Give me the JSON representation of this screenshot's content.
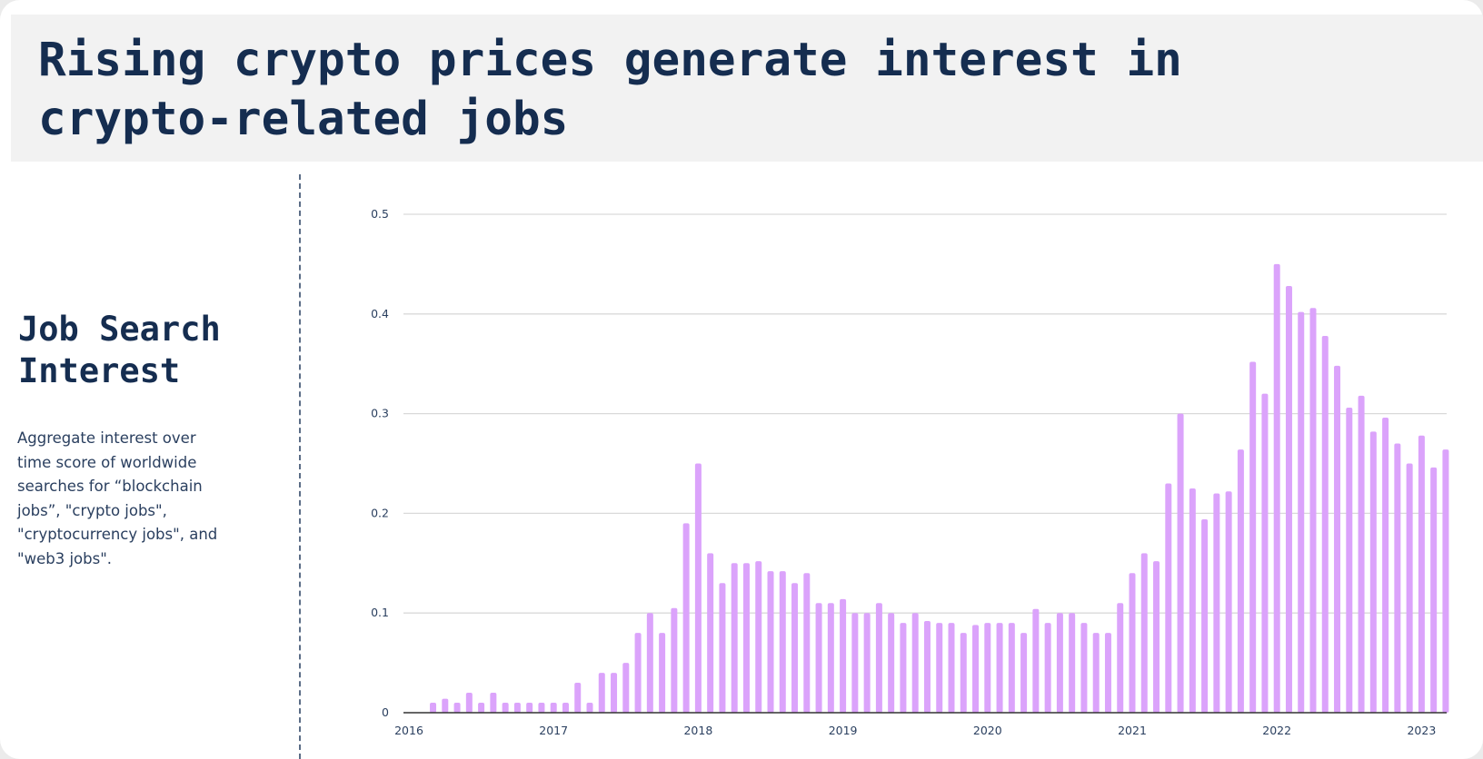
{
  "header": {
    "title": "Rising crypto prices generate interest in crypto-related jobs"
  },
  "sidebar": {
    "title": "Job Search Interest",
    "description": "Aggregate interest over time score of worldwide searches for “blockchain jobs”, \"crypto jobs\", \"cryptocurrency jobs\", and \"web3 jobs\"."
  },
  "colors": {
    "bar": "#dba3fb",
    "grid": "#d9d9d9",
    "axis": "#333333",
    "title": "#152d50"
  },
  "chart_data": {
    "type": "bar",
    "title": "",
    "xlabel": "",
    "ylabel": "",
    "ylim": [
      0,
      0.5
    ],
    "y_ticks": [
      "0",
      "0.1",
      "0.2",
      "0.3",
      "0.4",
      "0.5"
    ],
    "x_tick_labels": [
      "2016",
      "2017",
      "2018",
      "2019",
      "2020",
      "2021",
      "2022",
      "2023"
    ],
    "grid": "horizontal",
    "x_start": "2016-01",
    "x_end": "2023-04",
    "categories": [
      "2016-03",
      "2016-04",
      "2016-05",
      "2016-06",
      "2016-07",
      "2016-08",
      "2016-09",
      "2016-10",
      "2016-11",
      "2016-12",
      "2017-01",
      "2017-02",
      "2017-03",
      "2017-04",
      "2017-05",
      "2017-06",
      "2017-07",
      "2017-08",
      "2017-09",
      "2017-10",
      "2017-11",
      "2017-12",
      "2018-01",
      "2018-02",
      "2018-03",
      "2018-04",
      "2018-05",
      "2018-06",
      "2018-07",
      "2018-08",
      "2018-09",
      "2018-10",
      "2018-11",
      "2018-12",
      "2019-01",
      "2019-02",
      "2019-03",
      "2019-04",
      "2019-05",
      "2019-06",
      "2019-07",
      "2019-08",
      "2019-09",
      "2019-10",
      "2019-11",
      "2019-12",
      "2020-01",
      "2020-02",
      "2020-03",
      "2020-04",
      "2020-05",
      "2020-06",
      "2020-07",
      "2020-08",
      "2020-09",
      "2020-10",
      "2020-11",
      "2020-12",
      "2021-01",
      "2021-02",
      "2021-03",
      "2021-04",
      "2021-05",
      "2021-06",
      "2021-07",
      "2021-08",
      "2021-09",
      "2021-10",
      "2021-11",
      "2021-12",
      "2022-01",
      "2022-02",
      "2022-03",
      "2022-04",
      "2022-05",
      "2022-06",
      "2022-07",
      "2022-08",
      "2022-09",
      "2022-10",
      "2022-11",
      "2022-12",
      "2023-01",
      "2023-02",
      "2023-03"
    ],
    "values": [
      0.01,
      0.014,
      0.01,
      0.02,
      0.01,
      0.02,
      0.01,
      0.01,
      0.01,
      0.01,
      0.01,
      0.01,
      0.03,
      0.01,
      0.04,
      0.04,
      0.05,
      0.08,
      0.1,
      0.08,
      0.105,
      0.19,
      0.25,
      0.16,
      0.13,
      0.15,
      0.15,
      0.152,
      0.142,
      0.142,
      0.13,
      0.14,
      0.11,
      0.11,
      0.114,
      0.1,
      0.1,
      0.11,
      0.1,
      0.09,
      0.1,
      0.092,
      0.09,
      0.09,
      0.08,
      0.088,
      0.09,
      0.09,
      0.09,
      0.08,
      0.104,
      0.09,
      0.1,
      0.1,
      0.09,
      0.08,
      0.08,
      0.11,
      0.14,
      0.16,
      0.152,
      0.23,
      0.3,
      0.225,
      0.194,
      0.22,
      0.222,
      0.264,
      0.352,
      0.32,
      0.45,
      0.428,
      0.402,
      0.406,
      0.378,
      0.348,
      0.306,
      0.318,
      0.282,
      0.296,
      0.27,
      0.25,
      0.278,
      0.246,
      0.264
    ]
  }
}
